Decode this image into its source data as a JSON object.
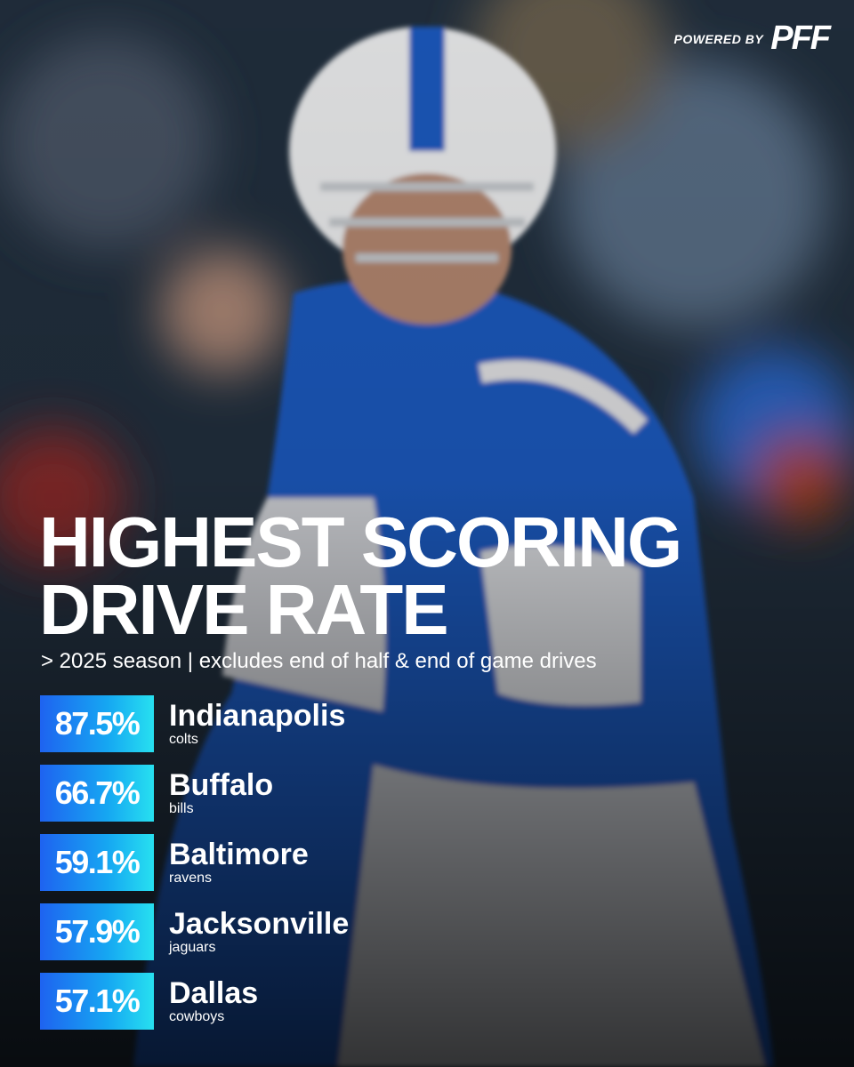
{
  "header": {
    "powered_by": "POWERED BY",
    "brand": "PFF"
  },
  "title": [
    "HIGHEST SCORING",
    "DRIVE RATE"
  ],
  "subtitle": "> 2025 season | excludes end of half & end of game drives",
  "rows": [
    {
      "rate": "87.5%",
      "city": "Indianapolis",
      "team": "colts"
    },
    {
      "rate": "66.7%",
      "city": "Buffalo",
      "team": "bills"
    },
    {
      "rate": "59.1%",
      "city": "Baltimore",
      "team": "ravens"
    },
    {
      "rate": "57.9%",
      "city": "Jacksonville",
      "team": "jaguars"
    },
    {
      "rate": "57.1%",
      "city": "Dallas",
      "team": "cowboys"
    }
  ]
}
